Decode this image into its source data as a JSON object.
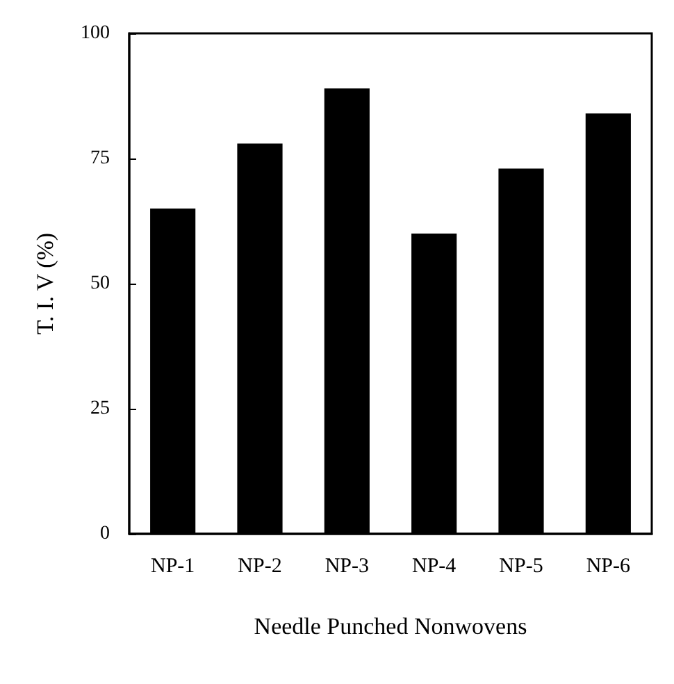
{
  "chart_data": {
    "type": "bar",
    "xlabel": "Needle Punched Nonwovens",
    "ylabel": "T. I. V (%)",
    "categories": [
      "NP-1",
      "NP-2",
      "NP-3",
      "NP-4",
      "NP-5",
      "NP-6"
    ],
    "values": [
      65,
      78,
      89,
      60,
      73,
      84
    ],
    "color": "#000000",
    "ylim": [
      0,
      100
    ],
    "yticks": [
      0,
      25,
      50,
      75,
      100
    ],
    "grid": false
  }
}
